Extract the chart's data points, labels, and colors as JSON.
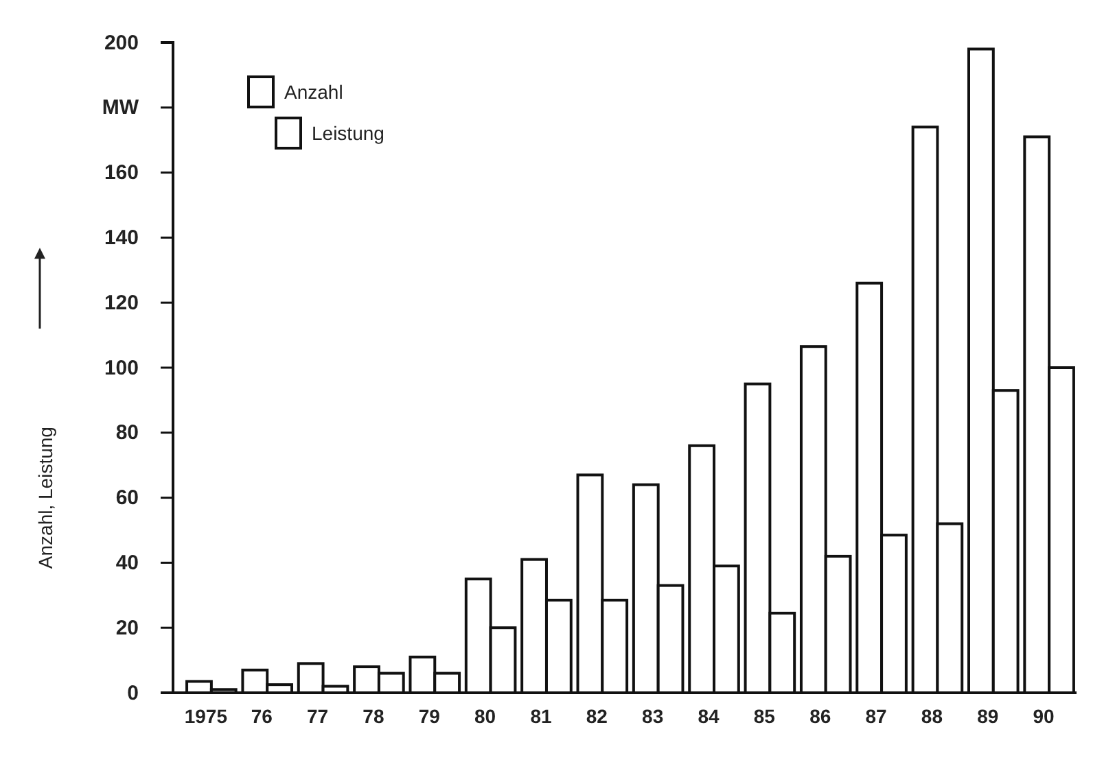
{
  "chart_data": {
    "type": "bar",
    "ylabel": "Anzahl, Leistung",
    "categories": [
      "1975",
      "76",
      "77",
      "78",
      "79",
      "80",
      "81",
      "82",
      "83",
      "84",
      "85",
      "86",
      "87",
      "88",
      "89",
      "90"
    ],
    "series": [
      {
        "name": "Anzahl",
        "color": "#ffffff",
        "values": [
          3.5,
          7,
          9,
          8,
          11,
          35,
          41,
          67,
          64,
          76,
          95,
          106.5,
          126,
          174,
          198,
          171
        ]
      },
      {
        "name": "Leistung",
        "color": "#ffffff",
        "values": [
          1,
          2.5,
          2,
          6,
          6,
          20,
          28.5,
          28.5,
          33,
          39,
          24.5,
          42,
          48.5,
          52,
          93,
          100
        ]
      }
    ],
    "ylim": [
      0,
      200
    ],
    "yticks": [
      0,
      20,
      40,
      60,
      80,
      100,
      120,
      140,
      160,
      {
        "value": 180,
        "label": "MW"
      },
      200
    ],
    "grid": false,
    "legend": "top left"
  }
}
